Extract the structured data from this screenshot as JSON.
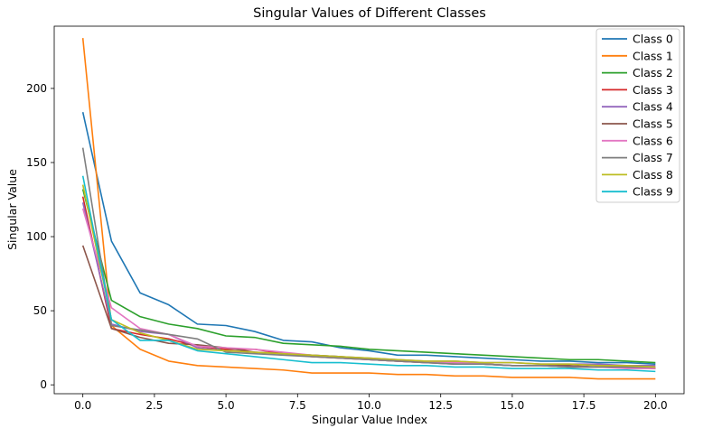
{
  "chart_data": {
    "type": "line",
    "title": "Singular Values of Different Classes",
    "xlabel": "Singular Value Index",
    "ylabel": "Singular Value",
    "xlim": [
      -1,
      21
    ],
    "ylim": [
      -6,
      242
    ],
    "x_ticks": [
      0.0,
      2.5,
      5.0,
      7.5,
      10.0,
      12.5,
      15.0,
      17.5,
      20.0
    ],
    "x_tick_labels": [
      "0.0",
      "2.5",
      "5.0",
      "7.5",
      "10.0",
      "12.5",
      "15.0",
      "17.5",
      "20.0"
    ],
    "y_ticks": [
      0,
      50,
      100,
      150,
      200
    ],
    "y_tick_labels": [
      "0",
      "50",
      "100",
      "150",
      "200"
    ],
    "grid": false,
    "legend_position": "top-right",
    "x": [
      0,
      1,
      2,
      3,
      4,
      5,
      6,
      7,
      8,
      9,
      10,
      11,
      12,
      13,
      14,
      15,
      16,
      17,
      18,
      19,
      20
    ],
    "series": [
      {
        "name": "Class 0",
        "color": "#1f77b4",
        "values": [
          184,
          97,
          62,
          54,
          41,
          40,
          36,
          30,
          29,
          25,
          23,
          20,
          20,
          19,
          18,
          17,
          16,
          16,
          15,
          15,
          14
        ]
      },
      {
        "name": "Class 1",
        "color": "#ff7f0e",
        "values": [
          234,
          40,
          24,
          16,
          13,
          12,
          11,
          10,
          8,
          8,
          8,
          7,
          7,
          6,
          6,
          5,
          5,
          5,
          4,
          4,
          4
        ]
      },
      {
        "name": "Class 2",
        "color": "#2ca02c",
        "values": [
          132,
          57,
          46,
          41,
          38,
          33,
          32,
          28,
          27,
          26,
          24,
          23,
          22,
          21,
          20,
          19,
          18,
          17,
          17,
          16,
          15
        ]
      },
      {
        "name": "Class 3",
        "color": "#d62728",
        "values": [
          127,
          38,
          34,
          31,
          26,
          24,
          24,
          21,
          19,
          18,
          17,
          16,
          15,
          14,
          14,
          13,
          13,
          12,
          12,
          12,
          11
        ]
      },
      {
        "name": "Class 4",
        "color": "#9467bd",
        "values": [
          123,
          41,
          36,
          34,
          25,
          23,
          22,
          21,
          20,
          19,
          18,
          17,
          16,
          16,
          15,
          15,
          14,
          14,
          14,
          13,
          13
        ]
      },
      {
        "name": "Class 5",
        "color": "#8c564b",
        "values": [
          94,
          38,
          32,
          28,
          27,
          25,
          22,
          21,
          20,
          19,
          17,
          16,
          15,
          15,
          14,
          13,
          13,
          13,
          12,
          12,
          11
        ]
      },
      {
        "name": "Class 6",
        "color": "#e377c2",
        "values": [
          119,
          52,
          38,
          34,
          26,
          25,
          24,
          22,
          20,
          18,
          17,
          16,
          15,
          15,
          14,
          13,
          13,
          12,
          12,
          11,
          11
        ]
      },
      {
        "name": "Class 7",
        "color": "#7f7f7f",
        "values": [
          160,
          40,
          37,
          34,
          31,
          22,
          21,
          20,
          19,
          18,
          17,
          16,
          15,
          14,
          14,
          13,
          13,
          12,
          12,
          12,
          12
        ]
      },
      {
        "name": "Class 8",
        "color": "#bcbd22",
        "values": [
          135,
          44,
          35,
          30,
          24,
          23,
          22,
          21,
          20,
          19,
          18,
          17,
          16,
          16,
          15,
          15,
          14,
          14,
          13,
          13,
          12
        ]
      },
      {
        "name": "Class 9",
        "color": "#17becf",
        "values": [
          141,
          44,
          30,
          30,
          23,
          21,
          19,
          17,
          15,
          15,
          14,
          13,
          13,
          12,
          12,
          11,
          11,
          11,
          10,
          10,
          9
        ]
      }
    ]
  }
}
